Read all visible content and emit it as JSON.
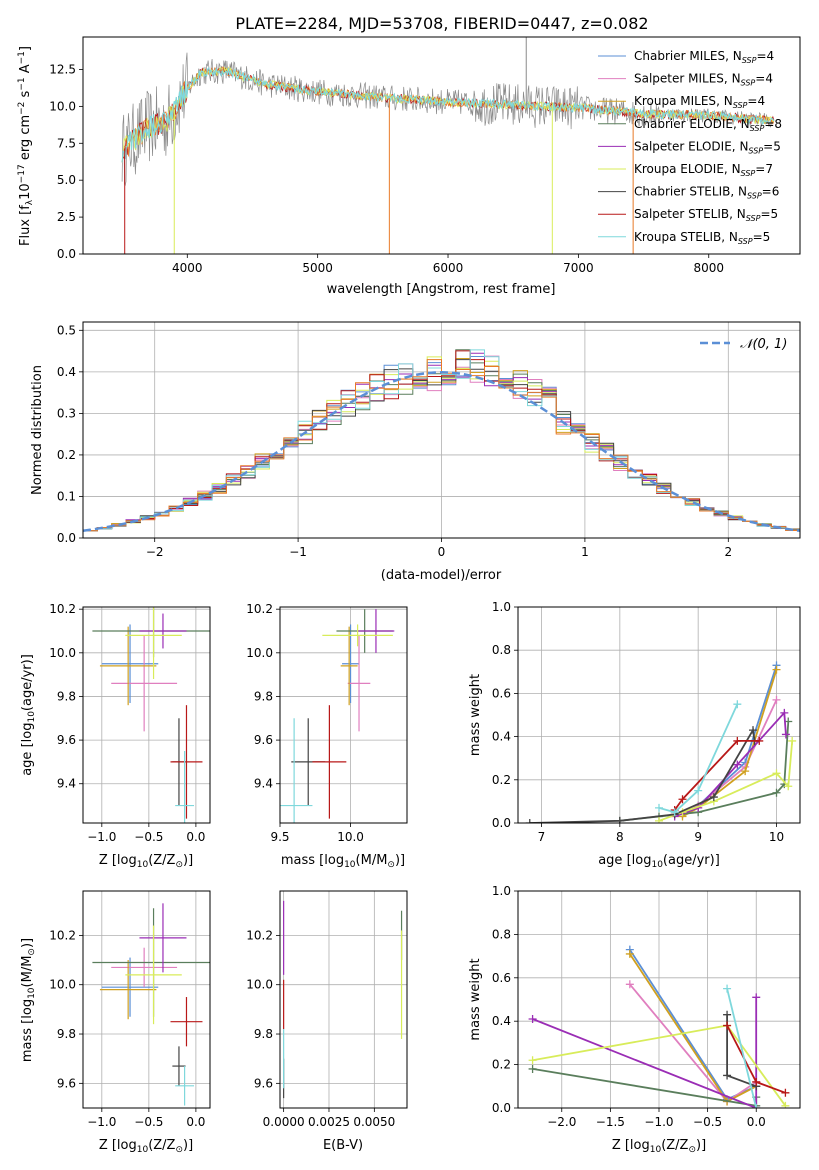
{
  "figure_title": "PLATE=2284, MJD=53708, FIBERID=0447, z=0.082",
  "model_colors": {
    "Chabrier MILES": "#5b8fd6",
    "Salpeter MILES": "#e07fbf",
    "Kroupa MILES": "#d0a020",
    "Chabrier ELODIE": "#5a7e5c",
    "Salpeter ELODIE": "#9a2db5",
    "Kroupa ELODIE": "#d8ec5a",
    "Chabrier STELIB": "#444444",
    "Salpeter STELIB": "#b81818",
    "Kroupa STELIB": "#7fd8dc",
    "fit_orange": "#e87a28",
    "data_gray": "#8a8a8a"
  },
  "chart_data": [
    {
      "id": "spectrum",
      "type": "line",
      "xlabel": "wavelength [Angstrom, rest frame]",
      "ylabel_main": "Flux [f",
      "ylabel_sub": "λ",
      "ylabel_rest": "10",
      "ylabel_exp1": "−17",
      "ylabel_mid": " erg cm",
      "ylabel_exp2": "−2",
      "ylabel_mid2": " s",
      "ylabel_exp3": "−1",
      "ylabel_mid3": " A",
      "ylabel_exp4": "−1",
      "ylabel_end": "]",
      "xlim": [
        3200,
        8700
      ],
      "ylim": [
        0,
        14.7
      ],
      "xticks": [
        "4000",
        "5000",
        "6000",
        "7000",
        "8000"
      ],
      "xtick_values": [
        4000,
        5000,
        6000,
        7000,
        8000
      ],
      "yticks": [
        "0.0",
        "2.5",
        "5.0",
        "7.5",
        "10.0",
        "12.5"
      ],
      "ytick_values": [
        0,
        2.5,
        5,
        7.5,
        10,
        12.5
      ],
      "legend": [
        {
          "name": "Chabrier MILES",
          "nssp": "4"
        },
        {
          "name": "Salpeter MILES",
          "nssp": "4"
        },
        {
          "name": "Kroupa MILES",
          "nssp": "4"
        },
        {
          "name": "Chabrier ELODIE",
          "nssp": "8"
        },
        {
          "name": "Salpeter ELODIE",
          "nssp": "5"
        },
        {
          "name": "Kroupa ELODIE",
          "nssp": "7"
        },
        {
          "name": "Chabrier STELIB",
          "nssp": "6"
        },
        {
          "name": "Salpeter STELIB",
          "nssp": "5"
        },
        {
          "name": "Kroupa STELIB",
          "nssp": "5"
        }
      ],
      "legend_nssp_label": "N",
      "legend_nssp_sub": "SSP",
      "legend_placement": "top-right",
      "continuum": [
        [
          3500,
          7.0
        ],
        [
          3700,
          8.6
        ],
        [
          3850,
          9.0
        ],
        [
          3950,
          10.6
        ],
        [
          4100,
          12.3
        ],
        [
          4300,
          12.4
        ],
        [
          4600,
          11.5
        ],
        [
          5000,
          11.0
        ],
        [
          5500,
          10.6
        ],
        [
          6000,
          10.3
        ],
        [
          6500,
          10.1
        ],
        [
          7000,
          9.9
        ],
        [
          7500,
          9.5
        ],
        [
          8000,
          9.4
        ],
        [
          8500,
          9.0
        ]
      ],
      "spikes": [
        {
          "x": 3520,
          "y": 0.0,
          "series": "Salpeter STELIB"
        },
        {
          "x": 3900,
          "y": 0.0,
          "series": "Kroupa ELODIE"
        },
        {
          "x": 5550,
          "y": 0.0,
          "series": "fit_orange"
        },
        {
          "x": 6800,
          "y": 0.0,
          "series": "Kroupa ELODIE"
        },
        {
          "x": 7420,
          "y": 0.0,
          "series": "fit_orange"
        },
        {
          "x": 6600,
          "y": 14.7,
          "series": "data_gray"
        }
      ]
    },
    {
      "id": "residuals",
      "type": "bar",
      "xlabel": "(data-model)/error",
      "ylabel": "Normed distribution",
      "xlim": [
        -2.5,
        2.5
      ],
      "ylim": [
        0,
        0.52
      ],
      "xticks": [
        "−2",
        "−1",
        "0",
        "1",
        "2"
      ],
      "xtick_values": [
        -2,
        -1,
        0,
        1,
        2
      ],
      "yticks": [
        "0.0",
        "0.1",
        "0.2",
        "0.3",
        "0.4",
        "0.5"
      ],
      "ytick_values": [
        0,
        0.1,
        0.2,
        0.3,
        0.4,
        0.5
      ],
      "bin_width": 0.1,
      "bin_start": -2.5,
      "reference": {
        "name": "𝒩(0, 1)",
        "mean": 0,
        "sigma": 1
      },
      "legend_placement": "top-right"
    },
    {
      "id": "age_vs_z",
      "type": "scatter",
      "xlabel_main": "Z [log",
      "xlabel_sub": "10",
      "xlabel_rest": "(Z/Z",
      "xlabel_sub2": "⊙",
      "xlabel_end": ")]",
      "ylabel_main": "age  [log",
      "ylabel_sub": "10",
      "ylabel_rest": "(age/yr)]",
      "xlim": [
        -1.2,
        0.15
      ],
      "ylim": [
        9.22,
        10.21
      ],
      "xticks": [
        "−1.0",
        "−0.5",
        "0.0"
      ],
      "xtick_values": [
        -1.0,
        -0.5,
        0.0
      ],
      "yticks": [
        "9.4",
        "9.6",
        "9.8",
        "10.0",
        "10.2"
      ],
      "ytick_values": [
        9.4,
        9.6,
        9.8,
        10.0,
        10.2
      ],
      "points": [
        {
          "series": "Chabrier MILES",
          "x": -0.7,
          "xerr": 0.3,
          "y": 9.95,
          "yerr": 0.18
        },
        {
          "series": "Salpeter MILES",
          "x": -0.55,
          "xerr": 0.35,
          "y": 9.86,
          "yerr": 0.22
        },
        {
          "series": "Kroupa MILES",
          "x": -0.72,
          "xerr": 0.3,
          "y": 9.94,
          "yerr": 0.18
        },
        {
          "series": "Chabrier ELODIE",
          "x": -0.45,
          "xerr": 0.65,
          "y": 10.1,
          "yerr": 0.12
        },
        {
          "series": "Salpeter ELODIE",
          "x": -0.35,
          "xerr": 0.25,
          "y": 10.1,
          "yerr": 0.08
        },
        {
          "series": "Kroupa ELODIE",
          "x": -0.45,
          "xerr": 0.3,
          "y": 10.08,
          "yerr": 0.2
        },
        {
          "series": "Chabrier STELIB",
          "x": -0.18,
          "xerr": 0.07,
          "y": 9.5,
          "yerr": 0.2
        },
        {
          "series": "Salpeter STELIB",
          "x": -0.1,
          "xerr": 0.17,
          "y": 9.5,
          "yerr": 0.26
        },
        {
          "series": "Kroupa STELIB",
          "x": -0.12,
          "xerr": 0.1,
          "y": 9.3,
          "yerr": 0.25
        }
      ]
    },
    {
      "id": "age_vs_mass",
      "type": "scatter",
      "xlabel_main": "mass [log",
      "xlabel_sub": "10",
      "xlabel_rest": "(M/M",
      "xlabel_sub2": "⊙",
      "xlabel_end": ")]",
      "xlim": [
        9.5,
        10.4
      ],
      "ylim": [
        9.22,
        10.21
      ],
      "xticks": [
        "9.5",
        "10.0"
      ],
      "xtick_values": [
        9.5,
        10.0
      ],
      "yticks": [
        "9.4",
        "9.6",
        "9.8",
        "10.0",
        "10.2"
      ],
      "ytick_values": [
        9.4,
        9.6,
        9.8,
        10.0,
        10.2
      ],
      "points": [
        {
          "series": "Chabrier MILES",
          "x": 10.0,
          "xerr": 0.06,
          "y": 9.95,
          "yerr": 0.18
        },
        {
          "series": "Salpeter MILES",
          "x": 10.06,
          "xerr": 0.08,
          "y": 9.86,
          "yerr": 0.22
        },
        {
          "series": "Kroupa MILES",
          "x": 9.99,
          "xerr": 0.06,
          "y": 9.94,
          "yerr": 0.18
        },
        {
          "series": "Chabrier ELODIE",
          "x": 10.1,
          "xerr": 0.2,
          "y": 10.1,
          "yerr": 0.1
        },
        {
          "series": "Salpeter ELODIE",
          "x": 10.18,
          "xerr": 0.13,
          "y": 10.1,
          "yerr": 0.1
        },
        {
          "series": "Kroupa ELODIE",
          "x": 10.05,
          "xerr": 0.25,
          "y": 10.08,
          "yerr": 0.05
        },
        {
          "series": "Chabrier STELIB",
          "x": 9.7,
          "xerr": 0.12,
          "y": 9.5,
          "yerr": 0.2
        },
        {
          "series": "Salpeter STELIB",
          "x": 9.85,
          "xerr": 0.12,
          "y": 9.5,
          "yerr": 0.26
        },
        {
          "series": "Kroupa STELIB",
          "x": 9.6,
          "xerr": 0.13,
          "y": 9.3,
          "yerr": 0.4
        }
      ]
    },
    {
      "id": "mass_weight_vs_age",
      "type": "line",
      "xlabel_main": "age  [log",
      "xlabel_sub": "10",
      "xlabel_rest": "(age/yr)]",
      "ylabel": "mass weight",
      "xlim": [
        6.7,
        10.3
      ],
      "ylim": [
        0,
        1
      ],
      "xticks": [
        "7",
        "8",
        "9",
        "10"
      ],
      "xtick_values": [
        7,
        8,
        9,
        10
      ],
      "yticks": [
        "0.0",
        "0.2",
        "0.4",
        "0.6",
        "0.8",
        "1.0"
      ],
      "ytick_values": [
        0,
        0.2,
        0.4,
        0.6,
        0.8,
        1.0
      ],
      "series": [
        {
          "name": "Chabrier MILES",
          "x": [
            8.8,
            9.0,
            9.6,
            10.0
          ],
          "y": [
            0.04,
            0.08,
            0.28,
            0.73
          ]
        },
        {
          "name": "Salpeter MILES",
          "x": [
            8.8,
            9.0,
            9.6,
            10.0
          ],
          "y": [
            0.04,
            0.08,
            0.26,
            0.57
          ]
        },
        {
          "name": "Kroupa MILES",
          "x": [
            8.8,
            9.0,
            9.6,
            10.0
          ],
          "y": [
            0.03,
            0.07,
            0.24,
            0.71
          ]
        },
        {
          "name": "Chabrier ELODIE",
          "x": [
            8.0,
            8.5,
            9.0,
            10.0,
            10.1,
            10.15
          ],
          "y": [
            0.01,
            0.03,
            0.05,
            0.14,
            0.18,
            0.47
          ]
        },
        {
          "name": "Salpeter ELODIE",
          "x": [
            8.7,
            9.0,
            9.5,
            10.1,
            10.12
          ],
          "y": [
            0.03,
            0.07,
            0.27,
            0.51,
            0.41
          ]
        },
        {
          "name": "Kroupa ELODIE",
          "x": [
            8.5,
            8.8,
            9.2,
            10.0,
            10.15,
            10.2
          ],
          "y": [
            0.01,
            0.05,
            0.1,
            0.23,
            0.17,
            0.38
          ]
        },
        {
          "name": "Chabrier STELIB",
          "x": [
            6.85,
            8.0,
            8.7,
            9.2,
            9.7,
            9.72
          ],
          "y": [
            0.0,
            0.01,
            0.04,
            0.12,
            0.43,
            0.38
          ]
        },
        {
          "name": "Salpeter STELIB",
          "x": [
            8.7,
            8.8,
            9.5,
            9.78
          ],
          "y": [
            0.06,
            0.11,
            0.38,
            0.38
          ]
        },
        {
          "name": "Kroupa STELIB",
          "x": [
            8.5,
            8.7,
            9.0,
            9.5
          ],
          "y": [
            0.07,
            0.05,
            0.15,
            0.55
          ]
        }
      ],
      "marker": "+"
    },
    {
      "id": "mass_vs_z",
      "type": "scatter",
      "xlabel_main": "Z [log",
      "xlabel_sub": "10",
      "xlabel_rest": "(Z/Z",
      "xlabel_sub2": "⊙",
      "xlabel_end": ")]",
      "ylabel_main": "mass [log",
      "ylabel_sub": "10",
      "ylabel_rest": "(M/M",
      "ylabel_sub2": "⊙",
      "ylabel_end": ")]",
      "xlim": [
        -1.2,
        0.15
      ],
      "ylim": [
        9.5,
        10.38
      ],
      "xticks": [
        "−1.0",
        "−0.5",
        "0.0"
      ],
      "xtick_values": [
        -1.0,
        -0.5,
        0.0
      ],
      "yticks": [
        "9.6",
        "9.8",
        "10.0",
        "10.2"
      ],
      "ytick_values": [
        9.6,
        9.8,
        10.0,
        10.2
      ],
      "points": [
        {
          "series": "Chabrier MILES",
          "x": -0.7,
          "xerr": 0.3,
          "y": 9.99,
          "yerr": 0.12
        },
        {
          "series": "Salpeter MILES",
          "x": -0.55,
          "xerr": 0.35,
          "y": 10.07,
          "yerr": 0.08
        },
        {
          "series": "Kroupa MILES",
          "x": -0.72,
          "xerr": 0.3,
          "y": 9.98,
          "yerr": 0.12
        },
        {
          "series": "Chabrier ELODIE",
          "x": -0.45,
          "xerr": 0.65,
          "y": 10.09,
          "yerr": 0.22
        },
        {
          "series": "Salpeter ELODIE",
          "x": -0.35,
          "xerr": 0.25,
          "y": 10.19,
          "yerr": 0.14
        },
        {
          "series": "Kroupa ELODIE",
          "x": -0.45,
          "xerr": 0.3,
          "y": 10.04,
          "yerr": 0.2
        },
        {
          "series": "Chabrier STELIB",
          "x": -0.18,
          "xerr": 0.07,
          "y": 9.67,
          "yerr": 0.08
        },
        {
          "series": "Salpeter STELIB",
          "x": -0.1,
          "xerr": 0.17,
          "y": 9.85,
          "yerr": 0.1
        },
        {
          "series": "Kroupa STELIB",
          "x": -0.12,
          "xerr": 0.1,
          "y": 9.59,
          "yerr": 0.08
        }
      ]
    },
    {
      "id": "mass_vs_ebv",
      "type": "scatter",
      "xlabel": "E(B-V)",
      "xlim": [
        -0.0002,
        0.0068
      ],
      "ylim": [
        9.5,
        10.38
      ],
      "xticks": [
        "0.0000",
        "0.0025",
        "0.0050"
      ],
      "xtick_values": [
        0,
        0.0025,
        0.005
      ],
      "yticks": [
        "9.6",
        "9.8",
        "10.0",
        "10.2"
      ],
      "ytick_values": [
        9.6,
        9.8,
        10.0,
        10.2
      ],
      "points": [
        {
          "series": "Salpeter ELODIE",
          "x": 0.0,
          "xerr": 0,
          "y": 10.19,
          "yerr": 0.15
        },
        {
          "series": "Salpeter STELIB",
          "x": 0.0,
          "xerr": 0,
          "y": 9.92,
          "yerr": 0.1
        },
        {
          "series": "Chabrier STELIB",
          "x": 0.0,
          "xerr": 0,
          "y": 9.62,
          "yerr": 0.08
        },
        {
          "series": "Kroupa STELIB",
          "x": 0.0,
          "xerr": 0,
          "y": 9.7,
          "yerr": 0.12
        },
        {
          "series": "Chabrier ELODIE",
          "x": 0.0065,
          "xerr": 0,
          "y": 10.2,
          "yerr": 0.1
        },
        {
          "series": "Kroupa ELODIE",
          "x": 0.0065,
          "xerr": 0,
          "y": 10.0,
          "yerr": 0.22
        }
      ]
    },
    {
      "id": "mass_weight_vs_z",
      "type": "line",
      "xlabel_main": "Z [log",
      "xlabel_sub": "10",
      "xlabel_rest": "(Z/Z",
      "xlabel_sub2": "⊙",
      "xlabel_end": ")]",
      "ylabel": "mass weight",
      "xlim": [
        -2.45,
        0.45
      ],
      "ylim": [
        0,
        1
      ],
      "xticks": [
        "−2.0",
        "−1.5",
        "−1.0",
        "−0.5",
        "0.0"
      ],
      "xtick_values": [
        -2.0,
        -1.5,
        -1.0,
        -0.5,
        0.0
      ],
      "yticks": [
        "0.0",
        "0.2",
        "0.4",
        "0.6",
        "0.8",
        "1.0"
      ],
      "ytick_values": [
        0,
        0.2,
        0.4,
        0.6,
        0.8,
        1.0
      ],
      "series": [
        {
          "name": "Chabrier MILES",
          "x": [
            -1.3,
            -0.3,
            0.0
          ],
          "y": [
            0.73,
            0.04,
            0.1
          ]
        },
        {
          "name": "Salpeter MILES",
          "x": [
            -1.3,
            -0.3,
            0.0
          ],
          "y": [
            0.57,
            0.03,
            0.12
          ]
        },
        {
          "name": "Kroupa MILES",
          "x": [
            -1.3,
            -0.3,
            0.0
          ],
          "y": [
            0.71,
            0.03,
            0.1
          ]
        },
        {
          "name": "Chabrier ELODIE",
          "x": [
            -2.3,
            0.0,
            0.0
          ],
          "y": [
            0.18,
            0.01,
            0.05
          ]
        },
        {
          "name": "Salpeter ELODIE",
          "x": [
            -2.3,
            0.0,
            0.0
          ],
          "y": [
            0.41,
            0.0,
            0.51
          ]
        },
        {
          "name": "Kroupa ELODIE",
          "x": [
            -2.3,
            -0.3,
            0.3
          ],
          "y": [
            0.22,
            0.38,
            0.01
          ]
        },
        {
          "name": "Chabrier STELIB",
          "x": [
            -0.3,
            -0.3,
            0.0
          ],
          "y": [
            0.43,
            0.15,
            0.1
          ]
        },
        {
          "name": "Salpeter STELIB",
          "x": [
            -0.3,
            0.0,
            0.3
          ],
          "y": [
            0.38,
            0.12,
            0.07
          ]
        },
        {
          "name": "Kroupa STELIB",
          "x": [
            -0.3,
            0.0
          ],
          "y": [
            0.55,
            0.0
          ]
        }
      ],
      "marker": "+"
    }
  ]
}
